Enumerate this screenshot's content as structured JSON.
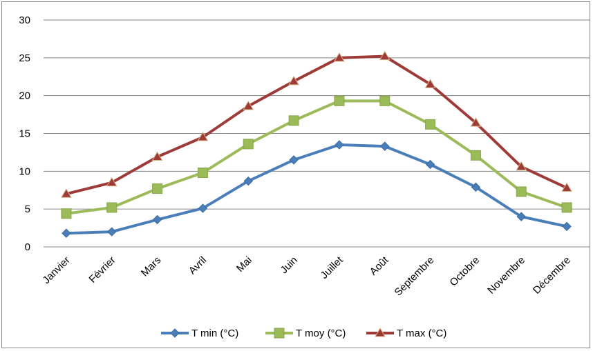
{
  "chart_data": {
    "type": "line",
    "title": "",
    "xlabel": "",
    "ylabel": "",
    "categories": [
      "Janvier",
      "Février",
      "Mars",
      "Avril",
      "Mai",
      "Juin",
      "Juillet",
      "Août",
      "Septembre",
      "Octobre",
      "Novembre",
      "Décembre"
    ],
    "ylim": [
      0,
      30
    ],
    "yticks": [
      0,
      5,
      10,
      15,
      20,
      25,
      30
    ],
    "grid": true,
    "legend_position": "bottom",
    "series": [
      {
        "name": "T min (°C)",
        "color": "#4a7ebb",
        "marker": "diamond",
        "values": [
          1.8,
          2.0,
          3.6,
          5.1,
          8.7,
          11.5,
          13.5,
          13.3,
          10.9,
          7.9,
          4.0,
          2.7
        ]
      },
      {
        "name": "T moy (°C)",
        "color": "#9bbb59",
        "marker": "square",
        "values": [
          4.4,
          5.2,
          7.7,
          9.8,
          13.6,
          16.7,
          19.3,
          19.3,
          16.2,
          12.1,
          7.3,
          5.2
        ]
      },
      {
        "name": "T max (°C)",
        "color": "#9e3a38",
        "marker": "triangle",
        "values": [
          7.0,
          8.5,
          11.9,
          14.5,
          18.6,
          21.9,
          25.0,
          25.2,
          21.5,
          16.4,
          10.6,
          7.8
        ]
      }
    ]
  }
}
